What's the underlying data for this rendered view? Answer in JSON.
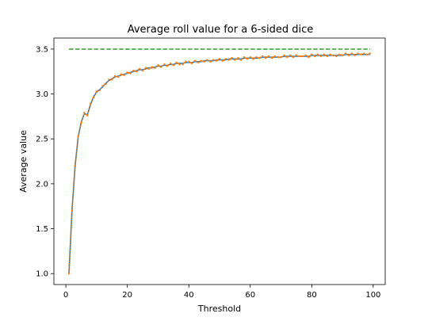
{
  "chart_data": {
    "type": "line",
    "title": "Average roll value for a 6-sided dice",
    "xlabel": "Threshold",
    "ylabel": "Average value",
    "xlim": [
      -3.9,
      103.9
    ],
    "ylim": [
      0.878,
      3.623
    ],
    "x_ticks": [
      0,
      20,
      40,
      60,
      80,
      100
    ],
    "y_ticks": [
      1.0,
      1.5,
      2.0,
      2.5,
      3.0,
      3.5
    ],
    "x_tick_labels": [
      "0",
      "20",
      "40",
      "60",
      "80",
      "100"
    ],
    "y_tick_labels": [
      "1.0",
      "1.5",
      "2.0",
      "2.5",
      "3.0",
      "3.5"
    ],
    "grid": false,
    "legend": "none",
    "series": [
      {
        "style": "line",
        "color": "#1f77b4",
        "x": [
          1,
          2,
          3,
          4,
          5,
          6,
          7,
          8,
          9,
          10,
          11,
          12,
          13,
          14,
          15,
          16,
          17,
          18,
          19,
          20,
          21,
          22,
          23,
          24,
          25,
          26,
          27,
          28,
          29,
          30,
          31,
          32,
          33,
          34,
          35,
          36,
          37,
          38,
          39,
          40,
          41,
          42,
          43,
          44,
          45,
          46,
          47,
          48,
          49,
          50,
          51,
          52,
          53,
          54,
          55,
          56,
          57,
          58,
          59,
          60,
          61,
          62,
          63,
          64,
          65,
          66,
          67,
          68,
          69,
          70,
          71,
          72,
          73,
          74,
          75,
          76,
          77,
          78,
          79,
          80,
          81,
          82,
          83,
          84,
          85,
          86,
          87,
          88,
          89,
          90,
          91,
          92,
          93,
          94,
          95,
          96,
          97,
          98,
          99
        ],
        "y": [
          1.0,
          1.71,
          2.2,
          2.52,
          2.69,
          2.78,
          2.77,
          2.88,
          2.97,
          3.02,
          3.05,
          3.08,
          3.12,
          3.15,
          3.17,
          3.19,
          3.2,
          3.21,
          3.22,
          3.23,
          3.24,
          3.25,
          3.26,
          3.27,
          3.27,
          3.28,
          3.29,
          3.29,
          3.3,
          3.31,
          3.31,
          3.32,
          3.32,
          3.33,
          3.33,
          3.34,
          3.34,
          3.34,
          3.35,
          3.35,
          3.35,
          3.36,
          3.36,
          3.36,
          3.37,
          3.37,
          3.37,
          3.37,
          3.38,
          3.38,
          3.38,
          3.38,
          3.39,
          3.39,
          3.39,
          3.39,
          3.39,
          3.4,
          3.4,
          3.4,
          3.4,
          3.4,
          3.4,
          3.41,
          3.41,
          3.41,
          3.41,
          3.41,
          3.41,
          3.41,
          3.42,
          3.42,
          3.42,
          3.42,
          3.42,
          3.42,
          3.42,
          3.42,
          3.42,
          3.43,
          3.43,
          3.43,
          3.43,
          3.43,
          3.43,
          3.43,
          3.43,
          3.43,
          3.43,
          3.43,
          3.44,
          3.44,
          3.44,
          3.44,
          3.44,
          3.44,
          3.44,
          3.44,
          3.44
        ]
      },
      {
        "style": "dotted",
        "color": "#ff7f0e",
        "x": [
          1,
          2,
          3,
          4,
          5,
          6,
          7,
          8,
          9,
          10,
          11,
          12,
          13,
          14,
          15,
          16,
          17,
          18,
          19,
          20,
          21,
          22,
          23,
          24,
          25,
          26,
          27,
          28,
          29,
          30,
          31,
          32,
          33,
          34,
          35,
          36,
          37,
          38,
          39,
          40,
          41,
          42,
          43,
          44,
          45,
          46,
          47,
          48,
          49,
          50,
          51,
          52,
          53,
          54,
          55,
          56,
          57,
          58,
          59,
          60,
          61,
          62,
          63,
          64,
          65,
          66,
          67,
          68,
          69,
          70,
          71,
          72,
          73,
          74,
          75,
          76,
          77,
          78,
          79,
          80,
          81,
          82,
          83,
          84,
          85,
          86,
          87,
          88,
          89,
          90,
          91,
          92,
          93,
          94,
          95,
          96,
          97,
          98,
          99
        ],
        "y": [
          1.0,
          1.7,
          2.2,
          2.53,
          2.68,
          2.79,
          2.76,
          2.89,
          2.96,
          3.03,
          3.04,
          3.09,
          3.11,
          3.16,
          3.16,
          3.2,
          3.19,
          3.22,
          3.21,
          3.24,
          3.23,
          3.26,
          3.25,
          3.28,
          3.26,
          3.29,
          3.28,
          3.3,
          3.29,
          3.32,
          3.3,
          3.33,
          3.31,
          3.34,
          3.32,
          3.35,
          3.33,
          3.33,
          3.36,
          3.36,
          3.34,
          3.37,
          3.35,
          3.37,
          3.36,
          3.38,
          3.36,
          3.38,
          3.37,
          3.39,
          3.37,
          3.39,
          3.38,
          3.4,
          3.38,
          3.4,
          3.38,
          3.41,
          3.39,
          3.41,
          3.39,
          3.41,
          3.4,
          3.42,
          3.4,
          3.42,
          3.4,
          3.42,
          3.41,
          3.41,
          3.43,
          3.41,
          3.43,
          3.41,
          3.43,
          3.42,
          3.42,
          3.43,
          3.41,
          3.44,
          3.42,
          3.44,
          3.42,
          3.44,
          3.42,
          3.44,
          3.43,
          3.42,
          3.44,
          3.43,
          3.45,
          3.43,
          3.45,
          3.43,
          3.45,
          3.44,
          3.45,
          3.44,
          3.45
        ]
      },
      {
        "style": "dashed",
        "color": "#2ca02c",
        "x": [
          1,
          99
        ],
        "y": [
          3.5,
          3.5
        ]
      }
    ]
  }
}
